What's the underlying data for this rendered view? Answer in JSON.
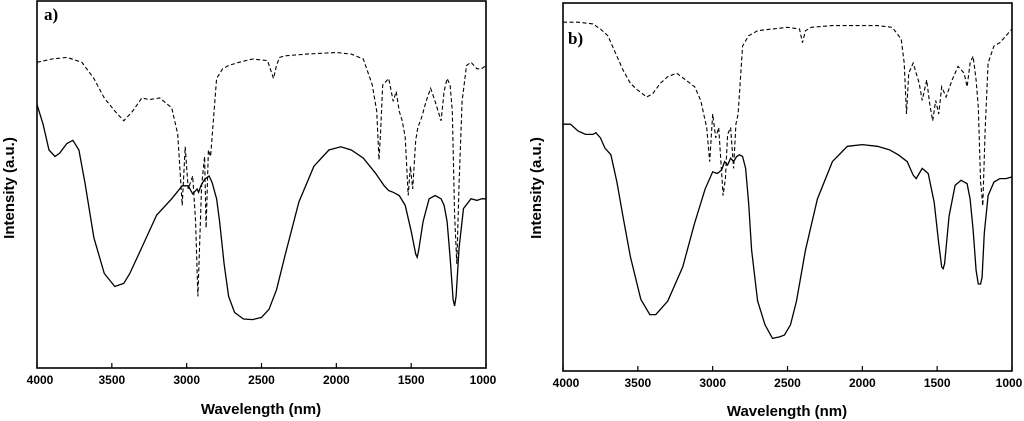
{
  "chart_data": [
    {
      "type": "line",
      "panel_label": "a)",
      "xlabel": "Wavelength (nm)",
      "ylabel": "Intensity (a.u.)",
      "xlim": [
        4000,
        1000
      ],
      "ylim": [
        0,
        100
      ],
      "x_ticks": [
        4000,
        3500,
        3000,
        2500,
        2000,
        1500,
        1000
      ],
      "grid": false,
      "series": [
        {
          "name": "dashed",
          "style": "dashed",
          "x": [
            4000,
            3900,
            3800,
            3700,
            3620,
            3550,
            3480,
            3420,
            3360,
            3300,
            3250,
            3180,
            3100,
            3060,
            3030,
            3010,
            2990,
            2960,
            2940,
            2925,
            2900,
            2880,
            2870,
            2855,
            2840,
            2800,
            2760,
            2720,
            2650,
            2560,
            2460,
            2420,
            2400,
            2380,
            2340,
            2200,
            2000,
            1900,
            1820,
            1760,
            1730,
            1715,
            1705,
            1690,
            1650,
            1620,
            1600,
            1580,
            1560,
            1540,
            1520,
            1505,
            1490,
            1470,
            1455,
            1430,
            1400,
            1370,
            1340,
            1300,
            1280,
            1260,
            1240,
            1225,
            1210,
            1195,
            1180,
            1160,
            1130,
            1100,
            1060,
            1030,
            1000
          ],
          "values": [
            87,
            88,
            88.5,
            87,
            82,
            76,
            72,
            69,
            72,
            76,
            75.5,
            76,
            73,
            65,
            43,
            61,
            48,
            52,
            38,
            15,
            49,
            58,
            36,
            60,
            58,
            82,
            85,
            86,
            87,
            88,
            87.5,
            82,
            86,
            88.5,
            89,
            89.5,
            90,
            89.5,
            88,
            80,
            72,
            57,
            65,
            80,
            82,
            75,
            78,
            72,
            69,
            64,
            46,
            55,
            48,
            63,
            67,
            70,
            75,
            79,
            75,
            69,
            78,
            82,
            80,
            72,
            40,
            25,
            50,
            75,
            86,
            87,
            85,
            85,
            86
          ]
        },
        {
          "name": "solid",
          "style": "solid",
          "x": [
            4000,
            3960,
            3920,
            3880,
            3850,
            3800,
            3760,
            3720,
            3680,
            3620,
            3550,
            3480,
            3420,
            3380,
            3300,
            3200,
            3100,
            3030,
            2990,
            2960,
            2930,
            2920,
            2905,
            2880,
            2850,
            2830,
            2800,
            2780,
            2750,
            2720,
            2680,
            2620,
            2560,
            2500,
            2450,
            2400,
            2340,
            2250,
            2150,
            2050,
            1970,
            1900,
            1820,
            1740,
            1680,
            1650,
            1620,
            1580,
            1540,
            1500,
            1470,
            1460,
            1450,
            1420,
            1380,
            1340,
            1300,
            1280,
            1260,
            1240,
            1220,
            1210,
            1200,
            1180,
            1150,
            1100,
            1060,
            1030,
            1000
          ],
          "values": [
            74,
            68,
            60,
            58,
            59,
            62,
            63,
            60,
            50,
            33,
            22,
            18,
            19,
            22,
            30,
            40,
            45,
            49,
            49,
            46.5,
            48,
            47,
            49,
            51,
            52,
            50,
            45,
            38,
            25,
            15,
            10,
            8,
            7.8,
            8.5,
            11,
            17,
            28,
            44,
            55,
            60,
            61,
            60,
            57.5,
            53,
            49,
            47.5,
            47,
            46,
            43,
            35,
            28,
            27,
            29,
            38,
            45,
            46,
            45,
            43,
            38,
            27,
            14,
            12,
            15,
            30,
            42,
            45,
            44.5,
            45,
            45
          ]
        }
      ]
    },
    {
      "type": "line",
      "panel_label": "b)",
      "xlabel": "Wavelength (nm)",
      "ylabel": "Intensity (a.u.)",
      "xlim": [
        4000,
        1000
      ],
      "ylim": [
        0,
        100
      ],
      "x_ticks": [
        4000,
        3500,
        3000,
        2500,
        2000,
        1500,
        1000
      ],
      "grid": false,
      "series": [
        {
          "name": "dashed",
          "style": "dashed",
          "x": [
            4000,
            3900,
            3800,
            3750,
            3700,
            3650,
            3600,
            3550,
            3500,
            3440,
            3400,
            3350,
            3300,
            3240,
            3180,
            3120,
            3080,
            3040,
            3020,
            3000,
            2980,
            2960,
            2930,
            2915,
            2900,
            2880,
            2860,
            2845,
            2830,
            2800,
            2760,
            2700,
            2600,
            2500,
            2420,
            2400,
            2380,
            2340,
            2200,
            2000,
            1900,
            1800,
            1740,
            1720,
            1705,
            1690,
            1660,
            1620,
            1600,
            1570,
            1550,
            1530,
            1510,
            1490,
            1470,
            1440,
            1400,
            1360,
            1320,
            1300,
            1280,
            1260,
            1240,
            1225,
            1210,
            1195,
            1180,
            1160,
            1120,
            1080,
            1040,
            1000
          ],
          "values": [
            97,
            97,
            96.5,
            95,
            93,
            88,
            83,
            79,
            77,
            75,
            76,
            79,
            81,
            82,
            80,
            78,
            74,
            66,
            56,
            70,
            63,
            66,
            46,
            51,
            64,
            66,
            54,
            67,
            70,
            90,
            93,
            94.5,
            95,
            95.5,
            95,
            91,
            94.5,
            95.5,
            96,
            96,
            96,
            95.5,
            92,
            85,
            70,
            82,
            85,
            79,
            74,
            80,
            73,
            68,
            74,
            70,
            78,
            75,
            80,
            84,
            82,
            78,
            85,
            87,
            80,
            72,
            50,
            43,
            65,
            85,
            90,
            91,
            93,
            95
          ]
        },
        {
          "name": "solid",
          "style": "solid",
          "x": [
            4000,
            3950,
            3900,
            3850,
            3800,
            3780,
            3750,
            3720,
            3680,
            3640,
            3600,
            3550,
            3480,
            3420,
            3380,
            3300,
            3200,
            3120,
            3050,
            3000,
            2970,
            2940,
            2920,
            2900,
            2880,
            2860,
            2840,
            2820,
            2800,
            2780,
            2760,
            2740,
            2700,
            2650,
            2600,
            2550,
            2520,
            2480,
            2440,
            2380,
            2300,
            2200,
            2100,
            2000,
            1900,
            1820,
            1760,
            1700,
            1660,
            1640,
            1600,
            1560,
            1520,
            1490,
            1470,
            1460,
            1450,
            1420,
            1380,
            1340,
            1300,
            1280,
            1260,
            1240,
            1225,
            1210,
            1200,
            1185,
            1160,
            1120,
            1080,
            1040,
            1000
          ],
          "values": [
            67,
            67,
            65,
            64,
            64,
            64.5,
            63,
            60,
            58,
            50,
            40,
            28,
            15.5,
            11,
            11,
            15,
            25,
            38,
            48,
            53,
            52.5,
            53.5,
            56,
            55,
            57,
            56,
            57.5,
            58,
            57.5,
            54,
            44,
            30,
            15,
            8,
            4,
            4.5,
            5,
            8,
            15,
            30,
            45,
            56,
            60.5,
            61,
            60.5,
            59.5,
            58,
            56,
            52,
            51,
            54,
            52.5,
            44,
            32,
            25,
            24.5,
            26,
            40,
            49,
            50.5,
            49.5,
            45,
            36,
            24,
            20,
            20,
            22,
            35,
            46,
            50,
            51,
            51,
            51.5
          ]
        }
      ]
    }
  ]
}
